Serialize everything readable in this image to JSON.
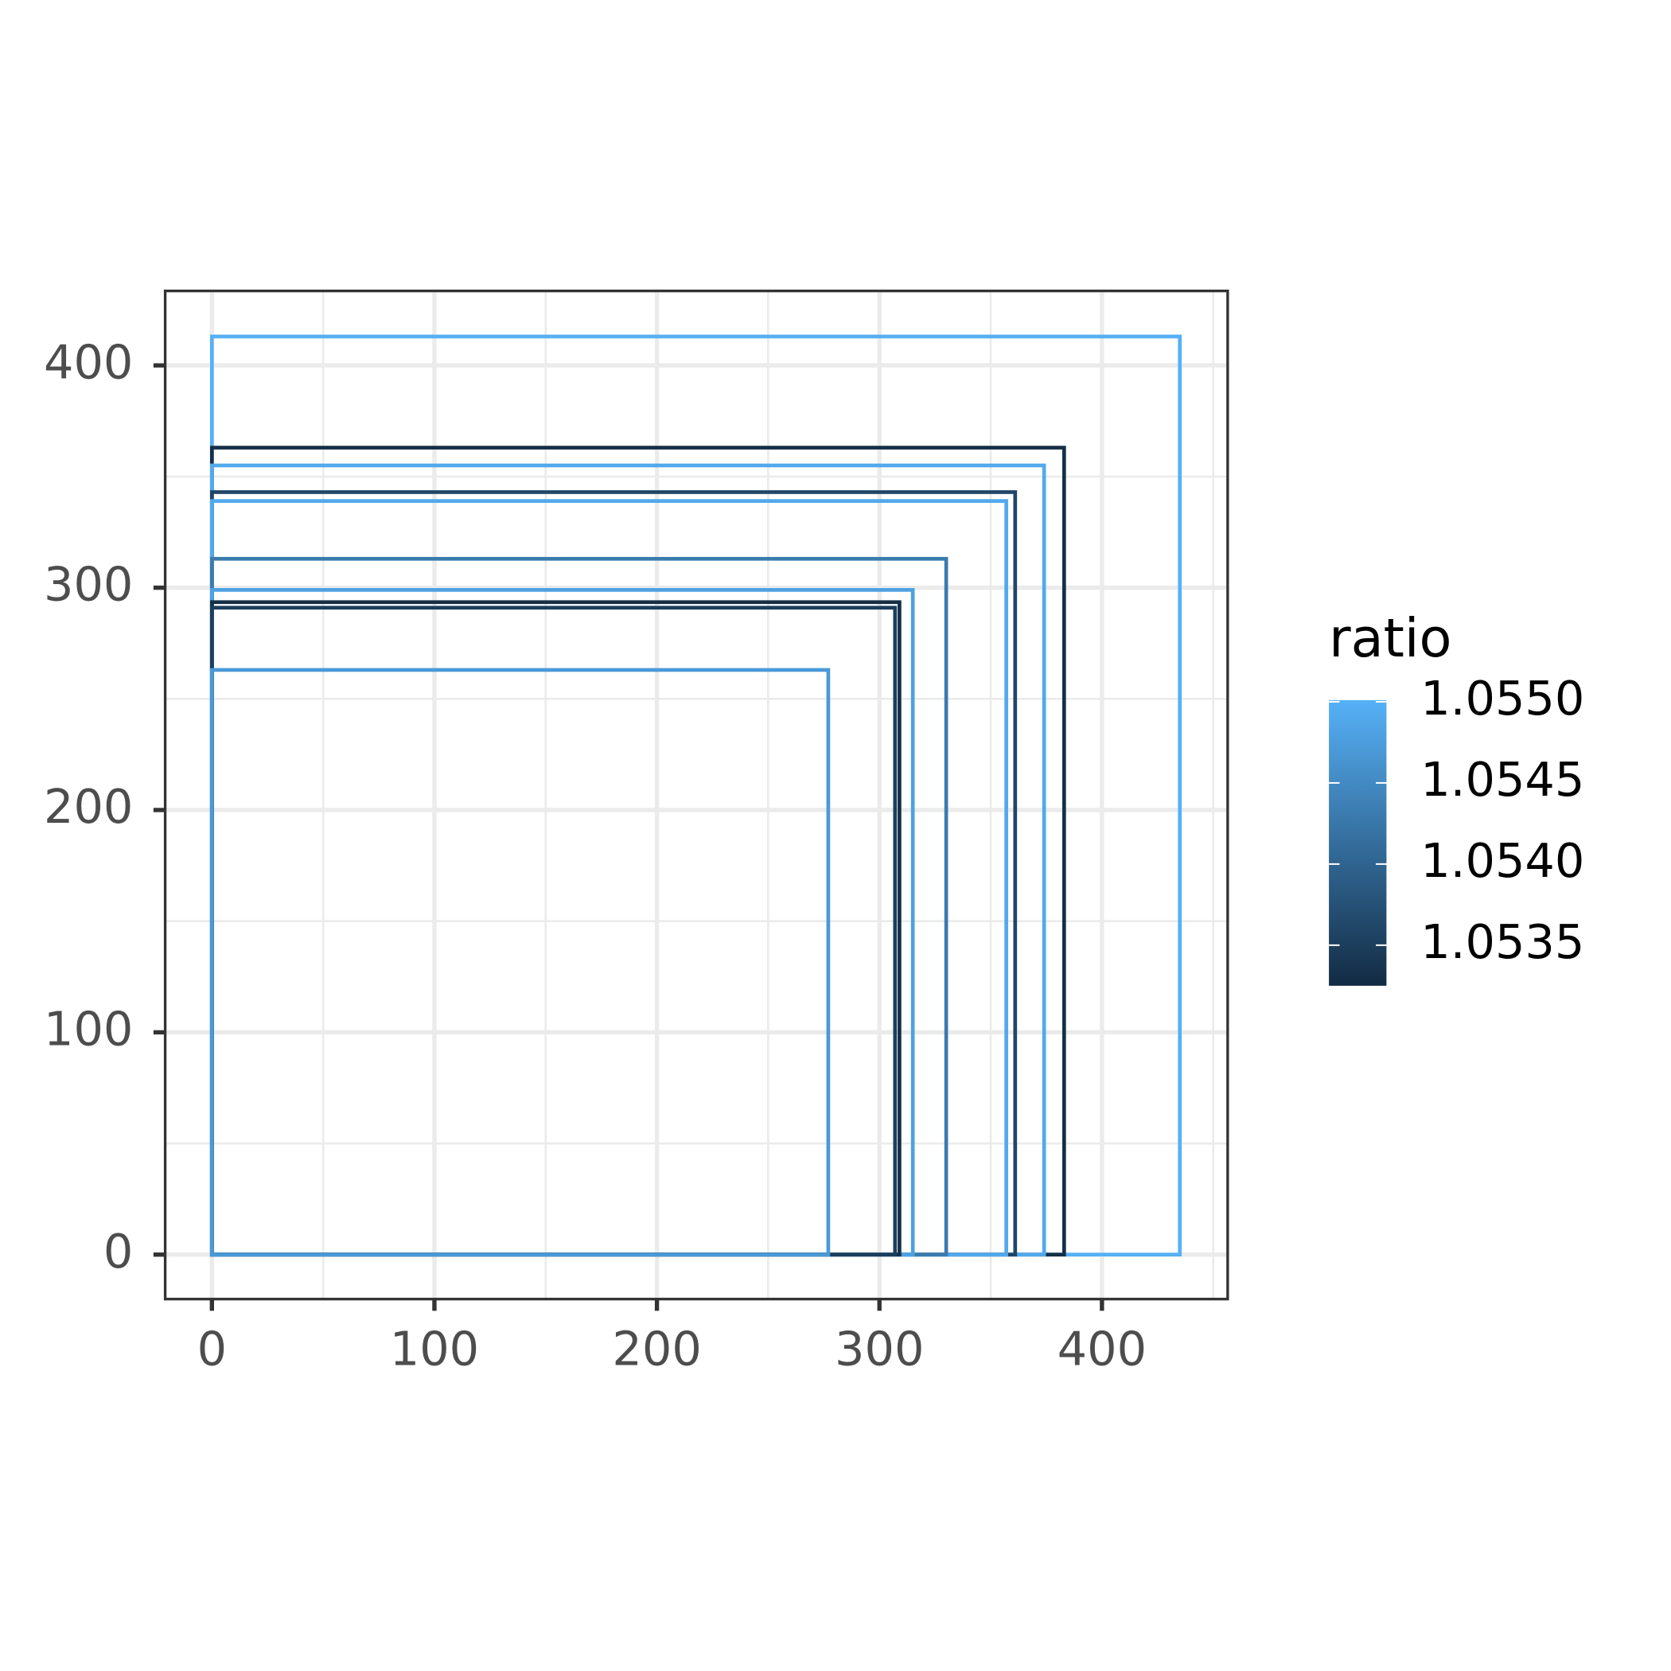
{
  "chart_data": {
    "type": "rect",
    "x": [
      435,
      383,
      374,
      361,
      357,
      330,
      315,
      309,
      307,
      277
    ],
    "values": [
      413,
      363,
      355,
      343,
      339,
      313,
      299,
      293.5,
      291,
      263
    ],
    "ratio": [
      1.055,
      1.0533,
      1.0549,
      1.0536,
      1.0549,
      1.0543,
      1.0548,
      1.0533,
      1.0535,
      1.0547
    ],
    "xlim": [
      -21,
      456.5
    ],
    "ylim": [
      -20,
      433.5
    ],
    "xticks": [
      0,
      100,
      200,
      300,
      400
    ],
    "yticks": [
      0,
      100,
      200,
      300,
      400
    ],
    "xminor": [
      50,
      150,
      250,
      350,
      450
    ],
    "yminor": [
      50,
      150,
      250,
      350
    ],
    "grid": true,
    "legend_title": "ratio",
    "color_low": "#132B43",
    "color_high": "#56B1F7",
    "colorbar_lim": [
      1.05325,
      1.05501
    ],
    "colorbar_ticks": [
      {
        "value": 1.055,
        "label": "1.0550"
      },
      {
        "value": 1.0545,
        "label": "1.0545"
      },
      {
        "value": 1.054,
        "label": "1.0540"
      },
      {
        "value": 1.0535,
        "label": "1.0535"
      }
    ]
  }
}
